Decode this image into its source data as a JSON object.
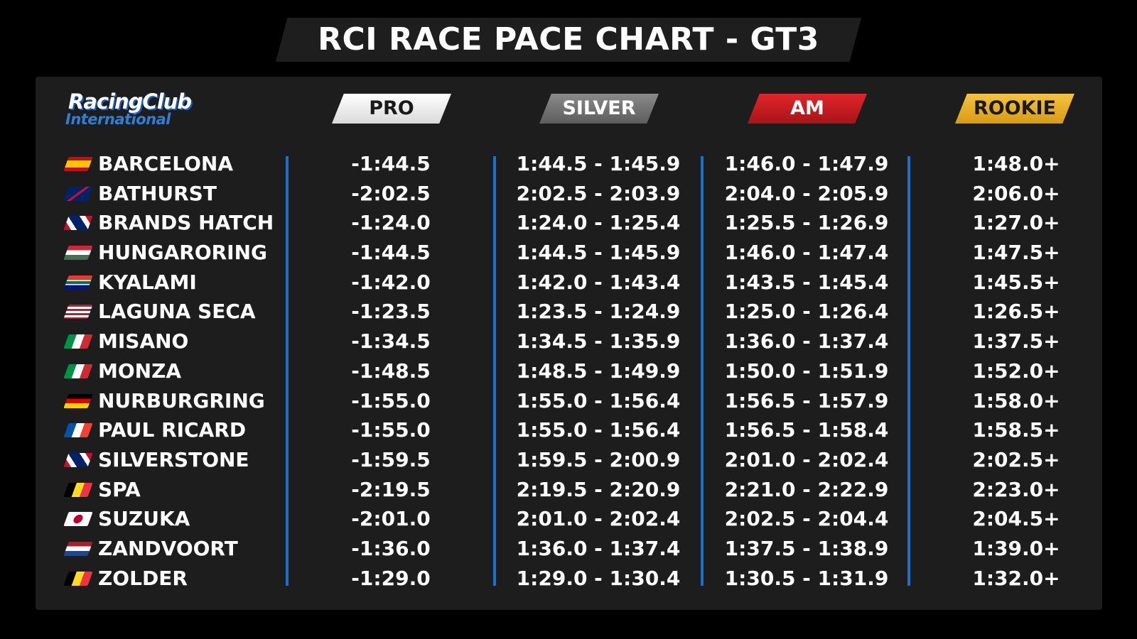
{
  "title": "RCI RACE PACE CHART - GT3",
  "logo": {
    "line1": "RacingClub",
    "line2": "International"
  },
  "tiers": [
    {
      "key": "pro",
      "label": "PRO",
      "color": "#e8e8e8"
    },
    {
      "key": "silver",
      "label": "SILVER",
      "color": "#747474"
    },
    {
      "key": "am",
      "label": "AM",
      "color": "#d01e22"
    },
    {
      "key": "rookie",
      "label": "ROOKIE",
      "color": "#eab32a"
    }
  ],
  "accent_color": "#1d6fc7",
  "rows": [
    {
      "track": "BARCELONA",
      "flag": "spain-flag-icon",
      "pro": "-1:44.5",
      "silver": "1:44.5 - 1:45.9",
      "am": "1:46.0 - 1:47.9",
      "rookie": "1:48.0+"
    },
    {
      "track": "BATHURST",
      "flag": "australia-flag-icon",
      "pro": "-2:02.5",
      "silver": "2:02.5 - 2:03.9",
      "am": "2:04.0 - 2:05.9",
      "rookie": "2:06.0+"
    },
    {
      "track": "BRANDS HATCH",
      "flag": "uk-flag-icon",
      "pro": "-1:24.0",
      "silver": "1:24.0 - 1:25.4",
      "am": "1:25.5 - 1:26.9",
      "rookie": "1:27.0+"
    },
    {
      "track": "HUNGARORING",
      "flag": "hungary-flag-icon",
      "pro": "-1:44.5",
      "silver": "1:44.5 - 1:45.9",
      "am": "1:46.0 - 1:47.4",
      "rookie": "1:47.5+"
    },
    {
      "track": "KYALAMI",
      "flag": "south-africa-flag-icon",
      "pro": "-1:42.0",
      "silver": "1:42.0 - 1:43.4",
      "am": "1:43.5 - 1:45.4",
      "rookie": "1:45.5+"
    },
    {
      "track": "LAGUNA SECA",
      "flag": "usa-flag-icon",
      "pro": "-1:23.5",
      "silver": "1:23.5 - 1:24.9",
      "am": "1:25.0 - 1:26.4",
      "rookie": "1:26.5+"
    },
    {
      "track": "MISANO",
      "flag": "italy-flag-icon",
      "pro": "-1:34.5",
      "silver": "1:34.5 - 1:35.9",
      "am": "1:36.0 - 1:37.4",
      "rookie": "1:37.5+"
    },
    {
      "track": "MONZA",
      "flag": "italy-flag-icon",
      "pro": "-1:48.5",
      "silver": "1:48.5 - 1:49.9",
      "am": "1:50.0 - 1:51.9",
      "rookie": "1:52.0+"
    },
    {
      "track": "NURBURGRING",
      "flag": "germany-flag-icon",
      "pro": "-1:55.0",
      "silver": "1:55.0 - 1:56.4",
      "am": "1:56.5 - 1:57.9",
      "rookie": "1:58.0+"
    },
    {
      "track": "PAUL RICARD",
      "flag": "france-flag-icon",
      "pro": "-1:55.0",
      "silver": "1:55.0 - 1:56.4",
      "am": "1:56.5 - 1:58.4",
      "rookie": "1:58.5+"
    },
    {
      "track": "SILVERSTONE",
      "flag": "uk-flag-icon",
      "pro": "-1:59.5",
      "silver": "1:59.5 - 2:00.9",
      "am": "2:01.0 - 2:02.4",
      "rookie": "2:02.5+"
    },
    {
      "track": "SPA",
      "flag": "belgium-flag-icon",
      "pro": "-2:19.5",
      "silver": "2:19.5 - 2:20.9",
      "am": "2:21.0 - 2:22.9",
      "rookie": "2:23.0+"
    },
    {
      "track": "SUZUKA",
      "flag": "japan-flag-icon",
      "pro": "-2:01.0",
      "silver": "2:01.0 - 2:02.4",
      "am": "2:02.5 - 2:04.4",
      "rookie": "2:04.5+"
    },
    {
      "track": "ZANDVOORT",
      "flag": "netherlands-flag-icon",
      "pro": "-1:36.0",
      "silver": "1:36.0 - 1:37.4",
      "am": "1:37.5 - 1:38.9",
      "rookie": "1:39.0+"
    },
    {
      "track": "ZOLDER",
      "flag": "belgium-flag-icon",
      "pro": "-1:29.0",
      "silver": "1:29.0 - 1:30.4",
      "am": "1:30.5 - 1:31.9",
      "rookie": "1:32.0+"
    }
  ]
}
